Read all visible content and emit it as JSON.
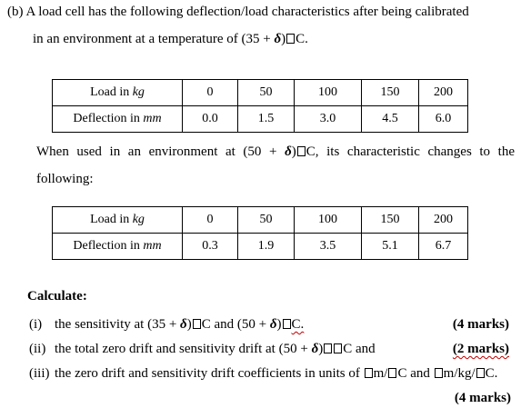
{
  "intro": {
    "prefix": "(b)",
    "line1": "A load cell has the following deflection/load characteristics after being calibrated",
    "line2_pre": "in an environment at a temperature of (35 + ",
    "line2_var": "δ",
    "line2_post": ") C."
  },
  "table1": {
    "load_label": "Load in ",
    "load_unit": "kg",
    "defl_label": "Deflection in ",
    "defl_unit": "mm",
    "loads": [
      "0",
      "50",
      "100",
      "150",
      "200"
    ],
    "deflections": [
      "0.0",
      "1.5",
      "3.0",
      "4.5",
      "6.0"
    ]
  },
  "para": {
    "pre": "When used in an environment at (50 + ",
    "var": "δ",
    "post": ") C, its characteristic changes to the following:"
  },
  "table2": {
    "load_label": "Load in ",
    "load_unit": "kg",
    "defl_label": "Deflection in ",
    "defl_unit": "mm",
    "loads": [
      "0",
      "50",
      "100",
      "150",
      "200"
    ],
    "deflections": [
      "0.3",
      "1.9",
      "3.5",
      "5.1",
      "6.7"
    ]
  },
  "calculate": "Calculate:",
  "questions": [
    {
      "num": "(i)",
      "pre": "the sensitivity at (35 + ",
      "var1": "δ",
      "mid": ") C and (50 + ",
      "var2": "δ",
      "post": ") C.",
      "marks": "(4 marks)"
    },
    {
      "num": "(ii)",
      "pre": "the total zero drift and sensitivity drift at (50 + ",
      "var1": "δ",
      "post": ")  C and",
      "marks": "(2 marks)"
    },
    {
      "num": "(iii)",
      "pre": "the zero drift and sensitivity drift coefficients in units of  m/ C and  m/kg/ C.",
      "marks": "(4 marks)"
    }
  ]
}
